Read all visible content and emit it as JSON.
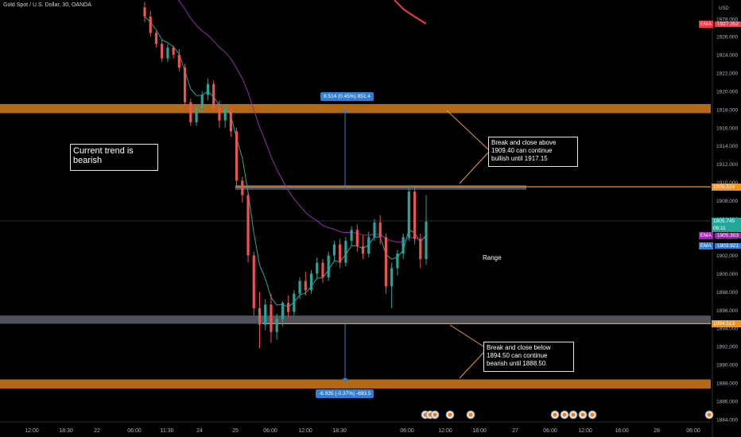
{
  "header": {
    "symbol_text": "Gold Spot / U.S. Dollar, 30, OANDA",
    "currency": "USD"
  },
  "colors": {
    "background": "#000000",
    "up_candle": "#26a69a",
    "down_candle": "#ef5350",
    "ema_fast": "#26a69a",
    "ema_slow": "#9c27b0",
    "ema_red": "#f23645",
    "resistance_zone": "#c8741a",
    "gray_zone": "#5d606b",
    "orange_line": "#f7931a",
    "annotation_line": "#e89a2b",
    "measure": "#2f7fd6"
  },
  "chart_data": {
    "type": "candlestick",
    "y_axis": {
      "min": 1883.8,
      "max": 1981,
      "ticks": [
        "1978.000",
        "1926.000",
        "1924.000",
        "1922.000",
        "1920.000",
        "1918.000",
        "1916.000",
        "1914.000",
        "1912.000",
        "1910.000",
        "1908.000",
        "1906.000",
        "1904.000",
        "1902.000",
        "1900.000",
        "1898.000",
        "1896.000",
        "1894.000",
        "1892.000",
        "1890.000",
        "1888.000",
        "1886.000",
        "1884.000"
      ],
      "note": "axis break between 1926 and 1978"
    },
    "x_axis": {
      "ticks": [
        "12:00",
        "18:30",
        "22",
        "06:00",
        "11:30",
        "24",
        "25",
        "06:00",
        "12:00",
        "18:30",
        "06:00",
        "12:00",
        "18:00",
        "27",
        "06:00",
        "12:00",
        "18:00",
        "28",
        "06:00"
      ]
    },
    "candles": [
      {
        "o": 1929.2,
        "h": 1929.8,
        "l": 1927.6,
        "c": 1928.2
      },
      {
        "o": 1928.2,
        "h": 1928.8,
        "l": 1926.0,
        "c": 1926.4
      },
      {
        "o": 1926.4,
        "h": 1926.6,
        "l": 1924.8,
        "c": 1925.2
      },
      {
        "o": 1925.2,
        "h": 1925.6,
        "l": 1923.2,
        "c": 1923.6
      },
      {
        "o": 1923.6,
        "h": 1925.2,
        "l": 1923.2,
        "c": 1924.8
      },
      {
        "o": 1924.8,
        "h": 1925.0,
        "l": 1923.6,
        "c": 1924.0
      },
      {
        "o": 1924.0,
        "h": 1924.6,
        "l": 1922.2,
        "c": 1922.6
      },
      {
        "o": 1922.6,
        "h": 1923.0,
        "l": 1918.4,
        "c": 1918.8
      },
      {
        "o": 1918.8,
        "h": 1919.2,
        "l": 1916.2,
        "c": 1916.6
      },
      {
        "o": 1916.6,
        "h": 1918.6,
        "l": 1916.2,
        "c": 1918.2
      },
      {
        "o": 1918.2,
        "h": 1920.0,
        "l": 1917.6,
        "c": 1919.6
      },
      {
        "o": 1919.6,
        "h": 1921.4,
        "l": 1919.0,
        "c": 1920.8
      },
      {
        "o": 1920.8,
        "h": 1921.2,
        "l": 1917.8,
        "c": 1918.2
      },
      {
        "o": 1918.2,
        "h": 1919.0,
        "l": 1916.0,
        "c": 1916.8
      },
      {
        "o": 1916.8,
        "h": 1918.6,
        "l": 1916.0,
        "c": 1918.0
      },
      {
        "o": 1918.0,
        "h": 1918.4,
        "l": 1915.0,
        "c": 1915.6
      },
      {
        "o": 1915.6,
        "h": 1916.0,
        "l": 1909.6,
        "c": 1910.2
      },
      {
        "o": 1910.2,
        "h": 1910.6,
        "l": 1907.8,
        "c": 1908.6
      },
      {
        "o": 1908.6,
        "h": 1909.0,
        "l": 1901.2,
        "c": 1902.0
      },
      {
        "o": 1902.0,
        "h": 1902.4,
        "l": 1895.4,
        "c": 1896.2
      },
      {
        "o": 1896.2,
        "h": 1898.0,
        "l": 1891.8,
        "c": 1894.4
      },
      {
        "o": 1894.4,
        "h": 1897.2,
        "l": 1893.8,
        "c": 1896.6
      },
      {
        "o": 1896.6,
        "h": 1897.8,
        "l": 1892.4,
        "c": 1893.6
      },
      {
        "o": 1893.6,
        "h": 1895.6,
        "l": 1892.8,
        "c": 1895.0
      },
      {
        "o": 1895.0,
        "h": 1897.0,
        "l": 1894.2,
        "c": 1896.8
      },
      {
        "o": 1896.8,
        "h": 1897.6,
        "l": 1895.2,
        "c": 1895.8
      },
      {
        "o": 1895.8,
        "h": 1898.2,
        "l": 1895.4,
        "c": 1897.8
      },
      {
        "o": 1897.8,
        "h": 1899.6,
        "l": 1897.2,
        "c": 1899.2
      },
      {
        "o": 1899.2,
        "h": 1900.2,
        "l": 1897.6,
        "c": 1898.2
      },
      {
        "o": 1898.2,
        "h": 1900.4,
        "l": 1897.8,
        "c": 1900.0
      },
      {
        "o": 1900.0,
        "h": 1901.8,
        "l": 1899.4,
        "c": 1901.2
      },
      {
        "o": 1901.2,
        "h": 1901.6,
        "l": 1899.0,
        "c": 1899.6
      },
      {
        "o": 1899.6,
        "h": 1902.4,
        "l": 1899.2,
        "c": 1902.0
      },
      {
        "o": 1902.0,
        "h": 1903.6,
        "l": 1901.4,
        "c": 1903.2
      },
      {
        "o": 1903.2,
        "h": 1903.8,
        "l": 1900.6,
        "c": 1901.2
      },
      {
        "o": 1901.2,
        "h": 1904.0,
        "l": 1900.8,
        "c": 1903.6
      },
      {
        "o": 1903.6,
        "h": 1905.2,
        "l": 1903.0,
        "c": 1904.8
      },
      {
        "o": 1904.8,
        "h": 1905.4,
        "l": 1902.4,
        "c": 1903.0
      },
      {
        "o": 1903.0,
        "h": 1904.2,
        "l": 1901.6,
        "c": 1902.2
      },
      {
        "o": 1902.2,
        "h": 1904.6,
        "l": 1901.8,
        "c": 1904.0
      },
      {
        "o": 1904.0,
        "h": 1906.0,
        "l": 1903.6,
        "c": 1905.6
      },
      {
        "o": 1905.6,
        "h": 1906.4,
        "l": 1903.2,
        "c": 1904.0
      },
      {
        "o": 1904.0,
        "h": 1904.4,
        "l": 1897.8,
        "c": 1898.6
      },
      {
        "o": 1898.6,
        "h": 1901.2,
        "l": 1896.2,
        "c": 1900.6
      },
      {
        "o": 1900.6,
        "h": 1902.6,
        "l": 1899.8,
        "c": 1902.2
      },
      {
        "o": 1902.2,
        "h": 1904.4,
        "l": 1901.6,
        "c": 1904.0
      },
      {
        "o": 1904.0,
        "h": 1909.6,
        "l": 1903.6,
        "c": 1909.0
      },
      {
        "o": 1909.0,
        "h": 1909.4,
        "l": 1903.2,
        "c": 1903.8
      },
      {
        "o": 1903.8,
        "h": 1904.4,
        "l": 1900.6,
        "c": 1901.6
      },
      {
        "o": 1901.6,
        "h": 1908.6,
        "l": 1901.0,
        "c": 1905.7
      }
    ],
    "levels": [
      {
        "name": "resistance-zone-1918",
        "from": 1917.6,
        "to": 1918.6
      },
      {
        "name": "support-zone-1887.8",
        "from": 1887.4,
        "to": 1888.4
      },
      {
        "name": "gray-zone-1909.4",
        "from": 1909.2,
        "to": 1909.7
      },
      {
        "name": "gray-zone-1894.8",
        "from": 1894.5,
        "to": 1895.4
      }
    ],
    "horizontal_lines": [
      {
        "name": "orange-line-1909.52",
        "value": 1909.52
      },
      {
        "name": "orange-line-1894.51",
        "value": 1894.51
      }
    ],
    "price_tags": [
      {
        "label": "1927.352",
        "badge": "EMA",
        "value": 1927.352,
        "color": "#f23645"
      },
      {
        "label": "1909.524",
        "badge": "",
        "value": 1909.52,
        "color": "#f7931a"
      },
      {
        "label": "1905.745",
        "badge": "",
        "value": 1905.745,
        "color": "#26a69a",
        "sub": "06:11"
      },
      {
        "label": "1905.303",
        "badge": "EMA",
        "value": 1904.2,
        "color": "#9c27b0"
      },
      {
        "label": "1903.921",
        "badge": "EMA",
        "value": 1903.0,
        "color": "#2f7fd6"
      },
      {
        "label": "1894.513",
        "badge": "",
        "value": 1894.51,
        "color": "#f7931a"
      }
    ]
  },
  "annotations": {
    "trend": "Current trend is\nbearish",
    "above": "Break and close above\n1909.40 can continue\nbullish until 1917.15",
    "below": "Break and close below\n1894.50 can continue\nbearish until 1888.50",
    "range": "Range",
    "measure_up": "8.514 (0.45%) 851.4",
    "measure_down": "-6.935 (-0.37%) -693.5"
  }
}
